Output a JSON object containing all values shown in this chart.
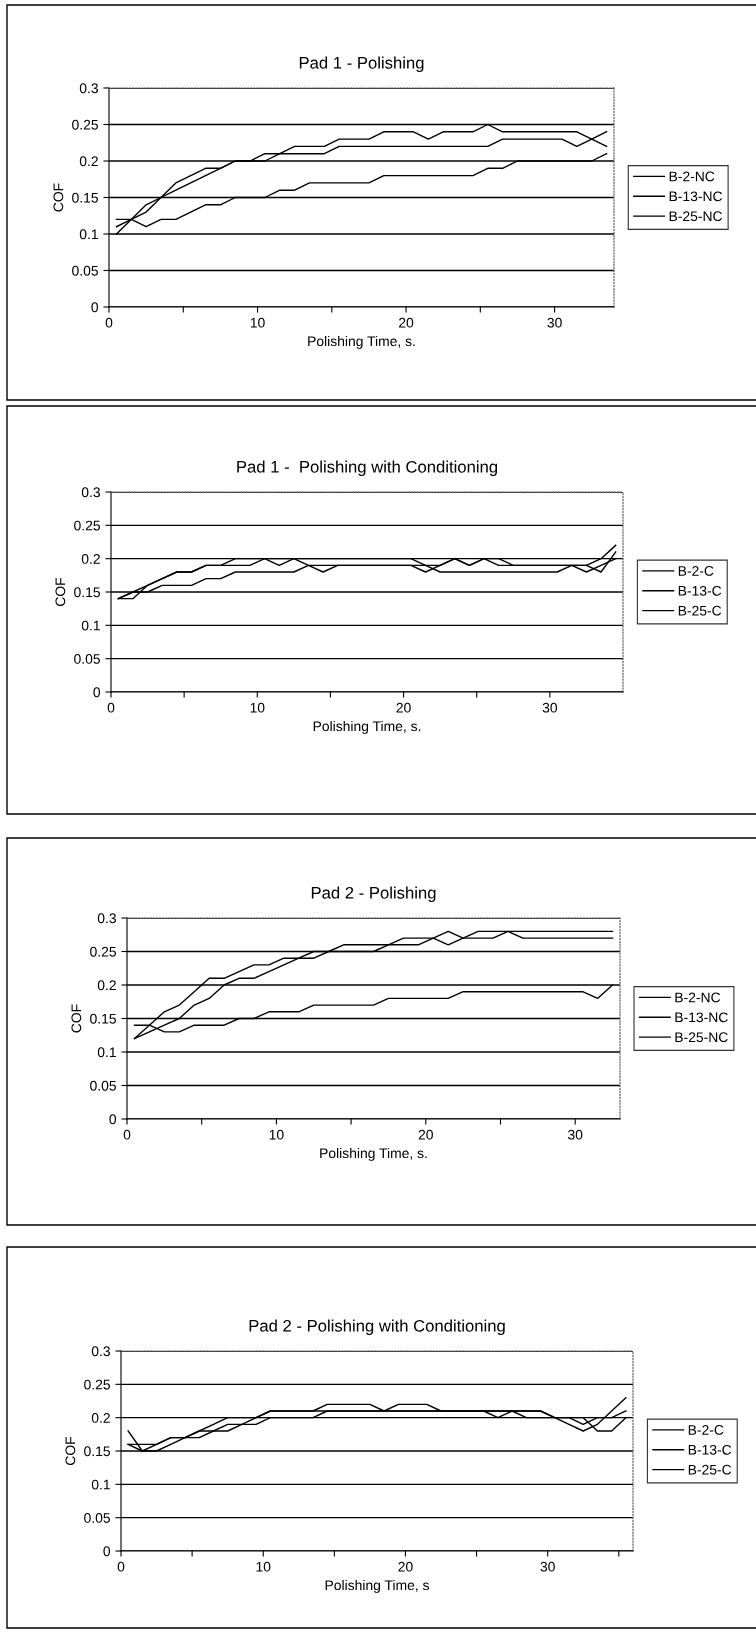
{
  "chart_data": [
    {
      "type": "line",
      "title": "Pad 1 - Polishing",
      "xlabel": "Polishing Time, s.",
      "ylabel": "COF",
      "x": [
        0.5,
        1.5,
        2.5,
        3.5,
        4.5,
        5.5,
        6.5,
        7.5,
        8.5,
        9.5,
        10.5,
        11.5,
        12.5,
        13.5,
        14.5,
        15.5,
        16.5,
        17.5,
        18.5,
        19.5,
        20.5,
        21.5,
        22.5,
        23.5,
        24.5,
        25.5,
        26.5,
        27.5,
        28.5,
        29.5,
        30.5,
        31.5,
        32.5,
        33.5
      ],
      "series": [
        {
          "name": "B-2-NC",
          "color": "#000000",
          "values": [
            0.1,
            0.12,
            0.14,
            0.15,
            0.17,
            0.18,
            0.19,
            0.19,
            0.2,
            0.2,
            0.21,
            0.21,
            0.22,
            0.22,
            0.22,
            0.23,
            0.23,
            0.23,
            0.24,
            0.24,
            0.24,
            0.23,
            0.24,
            0.24,
            0.24,
            0.25,
            0.24,
            0.24,
            0.24,
            0.24,
            0.24,
            0.24,
            0.23,
            0.24
          ]
        },
        {
          "name": "B-13-NC",
          "color": "#000000",
          "values": [
            0.11,
            0.12,
            0.13,
            0.15,
            0.16,
            0.17,
            0.18,
            0.19,
            0.2,
            0.2,
            0.2,
            0.21,
            0.21,
            0.21,
            0.21,
            0.22,
            0.22,
            0.22,
            0.22,
            0.22,
            0.22,
            0.22,
            0.22,
            0.22,
            0.22,
            0.22,
            0.23,
            0.23,
            0.23,
            0.23,
            0.23,
            0.22,
            0.23,
            0.22
          ]
        },
        {
          "name": "B-25-NC",
          "color": "#000000",
          "values": [
            0.12,
            0.12,
            0.11,
            0.12,
            0.12,
            0.13,
            0.14,
            0.14,
            0.15,
            0.15,
            0.15,
            0.16,
            0.16,
            0.17,
            0.17,
            0.17,
            0.17,
            0.17,
            0.18,
            0.18,
            0.18,
            0.18,
            0.18,
            0.18,
            0.18,
            0.19,
            0.19,
            0.2,
            0.2,
            0.2,
            0.2,
            0.2,
            0.2,
            0.21
          ]
        }
      ],
      "xlim": [
        0,
        34
      ],
      "xticks": [
        0,
        {
          "value": 5,
          "label": null
        },
        10,
        {
          "value": 15,
          "label": null
        },
        20,
        {
          "value": 25,
          "label": null
        },
        30
      ],
      "ylim": [
        0,
        0.3
      ],
      "yticks": [
        0,
        0.05,
        0.1,
        0.15,
        0.2,
        0.25,
        0.3
      ],
      "grid": "y",
      "legend": "right",
      "marker": "none",
      "line_style": "solid"
    },
    {
      "type": "line",
      "title": "Pad 1 -  Polishing with Conditioning",
      "xlabel": "Polishing Time, s.",
      "ylabel": "COF",
      "x": [
        0.5,
        1.5,
        2.5,
        3.5,
        4.5,
        5.5,
        6.5,
        7.5,
        8.5,
        9.5,
        10.5,
        11.5,
        12.5,
        13.5,
        14.5,
        15.5,
        16.5,
        17.5,
        18.5,
        19.5,
        20.5,
        21.5,
        22.5,
        23.5,
        24.5,
        25.5,
        26.5,
        27.5,
        28.5,
        29.5,
        30.5,
        31.5,
        32.5,
        33.5,
        34.5
      ],
      "series": [
        {
          "name": "B-2-C",
          "color": "#000000",
          "values": [
            0.14,
            0.15,
            0.16,
            0.17,
            0.18,
            0.18,
            0.19,
            0.19,
            0.2,
            0.2,
            0.2,
            0.2,
            0.2,
            0.2,
            0.2,
            0.2,
            0.2,
            0.2,
            0.2,
            0.2,
            0.2,
            0.19,
            0.19,
            0.2,
            0.19,
            0.2,
            0.2,
            0.19,
            0.19,
            0.19,
            0.19,
            0.19,
            0.19,
            0.2,
            0.22
          ]
        },
        {
          "name": "B-13-C",
          "color": "#000000",
          "values": [
            0.14,
            0.14,
            0.16,
            0.17,
            0.18,
            0.18,
            0.19,
            0.19,
            0.19,
            0.19,
            0.2,
            0.19,
            0.2,
            0.19,
            0.19,
            0.19,
            0.19,
            0.19,
            0.19,
            0.19,
            0.19,
            0.18,
            0.19,
            0.2,
            0.19,
            0.2,
            0.19,
            0.19,
            0.19,
            0.19,
            0.19,
            0.19,
            0.19,
            0.18,
            0.21
          ]
        },
        {
          "name": "B-25-C",
          "color": "#000000",
          "values": [
            0.14,
            0.15,
            0.15,
            0.16,
            0.16,
            0.16,
            0.17,
            0.17,
            0.18,
            0.18,
            0.18,
            0.18,
            0.18,
            0.19,
            0.18,
            0.19,
            0.19,
            0.19,
            0.19,
            0.19,
            0.19,
            0.19,
            0.18,
            0.18,
            0.18,
            0.18,
            0.18,
            0.18,
            0.18,
            0.18,
            0.18,
            0.19,
            0.18,
            0.19,
            0.2
          ]
        }
      ],
      "xlim": [
        0,
        35
      ],
      "xticks": [
        0,
        {
          "value": 5,
          "label": null
        },
        10,
        {
          "value": 15,
          "label": null
        },
        20,
        {
          "value": 25,
          "label": null
        },
        30
      ],
      "ylim": [
        0,
        0.3
      ],
      "yticks": [
        0,
        0.05,
        0.1,
        0.15,
        0.2,
        0.25,
        0.3
      ],
      "grid": "y",
      "legend": "right",
      "marker": "none",
      "line_style": "solid"
    },
    {
      "type": "line",
      "title": "Pad 2 - Polishing",
      "xlabel": "Polishing Time, s.",
      "ylabel": "COF",
      "x": [
        0.5,
        1.5,
        2.5,
        3.5,
        4.5,
        5.5,
        6.5,
        7.5,
        8.5,
        9.5,
        10.5,
        11.5,
        12.5,
        13.5,
        14.5,
        15.5,
        16.5,
        17.5,
        18.5,
        19.5,
        20.5,
        21.5,
        22.5,
        23.5,
        24.5,
        25.5,
        26.5,
        27.5,
        28.5,
        29.5,
        30.5,
        31.5,
        32.5
      ],
      "series": [
        {
          "name": "B-2-NC",
          "color": "#000000",
          "values": [
            0.12,
            0.14,
            0.16,
            0.17,
            0.19,
            0.21,
            0.21,
            0.22,
            0.23,
            0.23,
            0.24,
            0.24,
            0.24,
            0.25,
            0.26,
            0.26,
            0.26,
            0.26,
            0.26,
            0.26,
            0.27,
            0.26,
            0.27,
            0.27,
            0.27,
            0.28,
            0.27,
            0.27,
            0.27,
            0.27,
            0.27,
            0.27,
            0.27
          ]
        },
        {
          "name": "B-13-NC",
          "color": "#000000",
          "values": [
            0.12,
            0.13,
            0.14,
            0.15,
            0.17,
            0.18,
            0.2,
            0.21,
            0.21,
            0.22,
            0.23,
            0.24,
            0.25,
            0.25,
            0.25,
            0.25,
            0.25,
            0.26,
            0.27,
            0.27,
            0.27,
            0.28,
            0.27,
            0.28,
            0.28,
            0.28,
            0.28,
            0.28,
            0.28,
            0.28,
            0.28,
            0.28,
            0.28
          ]
        },
        {
          "name": "B-25-NC",
          "color": "#000000",
          "values": [
            0.14,
            0.14,
            0.13,
            0.13,
            0.14,
            0.14,
            0.14,
            0.15,
            0.15,
            0.16,
            0.16,
            0.16,
            0.17,
            0.17,
            0.17,
            0.17,
            0.17,
            0.18,
            0.18,
            0.18,
            0.18,
            0.18,
            0.19,
            0.19,
            0.19,
            0.19,
            0.19,
            0.19,
            0.19,
            0.19,
            0.19,
            0.18,
            0.2
          ]
        }
      ],
      "xlim": [
        0,
        33
      ],
      "xticks": [
        0,
        {
          "value": 5,
          "label": null
        },
        10,
        {
          "value": 15,
          "label": null
        },
        20,
        {
          "value": 25,
          "label": null
        },
        30
      ],
      "ylim": [
        0,
        0.3
      ],
      "yticks": [
        0,
        0.05,
        0.1,
        0.15,
        0.2,
        0.25,
        0.3
      ],
      "grid": "y",
      "legend": "right",
      "marker": "none",
      "line_style": "solid"
    },
    {
      "type": "line",
      "title": "Pad 2 - Polishing with Conditioning",
      "xlabel": "Polishing Time, s",
      "ylabel": "COF",
      "x": [
        0.5,
        1.5,
        2.5,
        3.5,
        4.5,
        5.5,
        6.5,
        7.5,
        8.5,
        9.5,
        10.5,
        11.5,
        12.5,
        13.5,
        14.5,
        15.5,
        16.5,
        17.5,
        18.5,
        19.5,
        20.5,
        21.5,
        22.5,
        23.5,
        24.5,
        25.5,
        26.5,
        27.5,
        28.5,
        29.5,
        30.5,
        31.5,
        32.5,
        33.5,
        34.5,
        35.5
      ],
      "series": [
        {
          "name": "B-2-C",
          "color": "#000000",
          "values": [
            0.18,
            0.15,
            0.16,
            0.17,
            0.17,
            0.18,
            0.19,
            0.2,
            0.2,
            0.2,
            0.21,
            0.21,
            0.21,
            0.21,
            0.22,
            0.22,
            0.22,
            0.22,
            0.21,
            0.22,
            0.22,
            0.22,
            0.21,
            0.21,
            0.21,
            0.21,
            0.21,
            0.21,
            0.21,
            0.21,
            0.2,
            0.19,
            0.18,
            0.19,
            0.21,
            0.23
          ]
        },
        {
          "name": "B-13-C",
          "color": "#000000",
          "values": [
            0.16,
            0.16,
            0.16,
            0.17,
            0.17,
            0.17,
            0.18,
            0.19,
            0.19,
            0.2,
            0.21,
            0.21,
            0.21,
            0.21,
            0.21,
            0.21,
            0.21,
            0.21,
            0.21,
            0.21,
            0.21,
            0.21,
            0.21,
            0.21,
            0.21,
            0.21,
            0.2,
            0.21,
            0.21,
            0.21,
            0.2,
            0.2,
            0.19,
            0.2,
            0.2,
            0.21
          ]
        },
        {
          "name": "B-25-C",
          "color": "#000000",
          "values": [
            0.16,
            0.15,
            0.15,
            0.16,
            0.17,
            0.18,
            0.18,
            0.18,
            0.19,
            0.19,
            0.2,
            0.2,
            0.2,
            0.2,
            0.21,
            0.21,
            0.21,
            0.21,
            0.21,
            0.21,
            0.21,
            0.21,
            0.21,
            0.21,
            0.21,
            0.21,
            0.21,
            0.21,
            0.2,
            0.2,
            0.2,
            0.2,
            0.2,
            0.18,
            0.18,
            0.2
          ]
        }
      ],
      "xlim": [
        0,
        36
      ],
      "xticks": [
        0,
        {
          "value": 5,
          "label": null
        },
        10,
        {
          "value": 15,
          "label": null
        },
        20,
        {
          "value": 25,
          "label": null
        },
        30,
        {
          "value": 35,
          "label": null
        }
      ],
      "ylim": [
        0,
        0.3
      ],
      "yticks": [
        0,
        0.05,
        0.1,
        0.15,
        0.2,
        0.25,
        0.3
      ],
      "grid": "y",
      "legend": "right",
      "marker": "none",
      "line_style": "solid"
    }
  ]
}
